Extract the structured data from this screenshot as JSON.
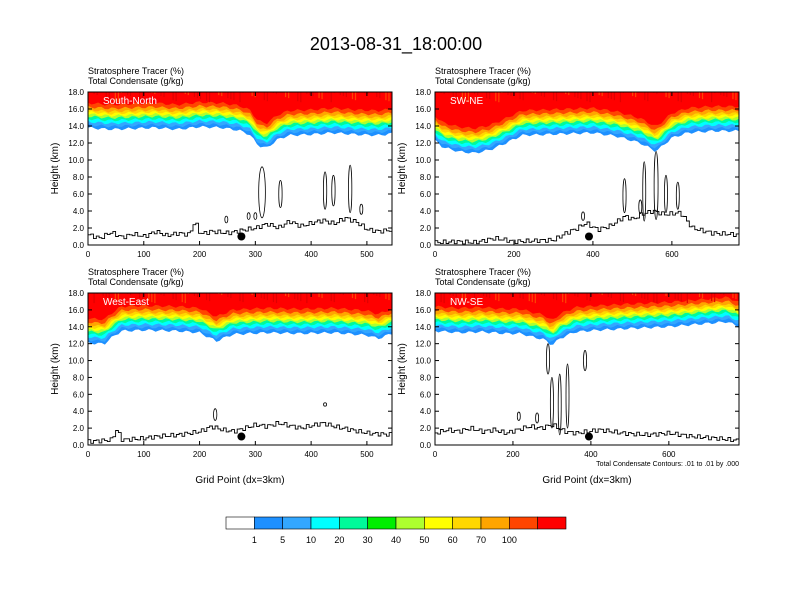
{
  "title": "2013-08-31_18:00:00",
  "colors": {
    "background": "#ffffff",
    "ink": "#000000",
    "panel_label": "#ffffff"
  },
  "chart_data": {
    "type": "filled-contour cross-sections",
    "shared": {
      "field_labels": [
        "Stratosphere Tracer   (%)",
        "Total Condensate   (g/kg)"
      ],
      "ylabel": "Height (km)",
      "xlabel": "Grid Point (dx=3km)",
      "ylim": [
        0,
        18
      ],
      "yticks": [
        "0.0",
        "2.0",
        "4.0",
        "6.0",
        "8.0",
        "10.0",
        "12.0",
        "14.0",
        "16.0",
        "18.0"
      ],
      "contour_note": "Total Condensate Contours: .01 to .01 by .000"
    },
    "colorbar": {
      "labels": [
        "1",
        "5",
        "10",
        "20",
        "30",
        "40",
        "50",
        "60",
        "70",
        "100"
      ],
      "colors": [
        "#ffffff",
        "#1e90ff",
        "#33a7ff",
        "#00ffff",
        "#00fa9a",
        "#00ee00",
        "#adff2f",
        "#ffff00",
        "#ffd700",
        "#ffa500",
        "#ff4500",
        "#ff0000"
      ]
    },
    "panels": [
      {
        "name": "South-North",
        "xlim": [
          0,
          545
        ],
        "xticks": [
          "0",
          "100",
          "200",
          "300",
          "400",
          "500"
        ],
        "xtick_values": [
          0,
          100,
          200,
          300,
          400,
          500
        ],
        "marker_x": 275,
        "marker_height_km": 1.0,
        "tracer_base_km": [
          [
            0,
            13.8
          ],
          [
            40,
            13.6
          ],
          [
            80,
            13.7
          ],
          [
            120,
            13.8
          ],
          [
            160,
            13.6
          ],
          [
            200,
            13.9
          ],
          [
            240,
            13.8
          ],
          [
            270,
            13.5
          ],
          [
            290,
            13.0
          ],
          [
            305,
            11.7
          ],
          [
            320,
            11.4
          ],
          [
            340,
            12.4
          ],
          [
            360,
            12.9
          ],
          [
            400,
            13.0
          ],
          [
            440,
            13.2
          ],
          [
            480,
            13.0
          ],
          [
            520,
            12.9
          ],
          [
            545,
            13.1
          ]
        ],
        "terrain_km": [
          [
            0,
            1.2
          ],
          [
            20,
            0.8
          ],
          [
            40,
            1.5
          ],
          [
            60,
            0.9
          ],
          [
            80,
            1.3
          ],
          [
            100,
            1.0
          ],
          [
            120,
            1.6
          ],
          [
            140,
            1.1
          ],
          [
            160,
            1.4
          ],
          [
            180,
            1.2
          ],
          [
            190,
            2.8
          ],
          [
            200,
            1.3
          ],
          [
            220,
            1.6
          ],
          [
            250,
            1.4
          ],
          [
            280,
            1.8
          ],
          [
            300,
            2.0
          ],
          [
            320,
            2.5
          ],
          [
            340,
            2.0
          ],
          [
            360,
            2.8
          ],
          [
            380,
            2.2
          ],
          [
            400,
            2.6
          ],
          [
            420,
            2.9
          ],
          [
            440,
            2.5
          ],
          [
            460,
            3.2
          ],
          [
            480,
            2.7
          ],
          [
            500,
            1.8
          ],
          [
            520,
            1.6
          ],
          [
            545,
            1.8
          ]
        ],
        "condensate_contours": [
          {
            "x": 312,
            "y_km": 6.2,
            "rx": 6,
            "ry_km": 3.0
          },
          {
            "x": 345,
            "y_km": 6.0,
            "rx": 3,
            "ry_km": 1.6
          },
          {
            "x": 425,
            "y_km": 6.4,
            "rx": 3,
            "ry_km": 2.2
          },
          {
            "x": 440,
            "y_km": 6.4,
            "rx": 3,
            "ry_km": 1.8
          },
          {
            "x": 470,
            "y_km": 6.6,
            "rx": 3,
            "ry_km": 2.8
          },
          {
            "x": 490,
            "y_km": 4.2,
            "rx": 2,
            "ry_km": 0.6
          },
          {
            "x": 248,
            "y_km": 3.0,
            "rx": 2,
            "ry_km": 0.4
          },
          {
            "x": 288,
            "y_km": 3.4,
            "rx": 2,
            "ry_km": 0.4
          },
          {
            "x": 300,
            "y_km": 3.4,
            "rx": 2,
            "ry_km": 0.4
          }
        ]
      },
      {
        "name": "SW-NE",
        "xlim": [
          0,
          770
        ],
        "xticks": [
          "0",
          "200",
          "400",
          "600"
        ],
        "xtick_values": [
          0,
          200,
          400,
          600
        ],
        "marker_x": 390,
        "marker_height_km": 1.0,
        "tracer_base_km": [
          [
            0,
            12.3
          ],
          [
            20,
            11.5
          ],
          [
            60,
            11.0
          ],
          [
            100,
            10.8
          ],
          [
            140,
            11.2
          ],
          [
            180,
            12.0
          ],
          [
            220,
            12.9
          ],
          [
            280,
            13.0
          ],
          [
            340,
            13.1
          ],
          [
            400,
            13.2
          ],
          [
            460,
            12.8
          ],
          [
            520,
            12.0
          ],
          [
            560,
            11.0
          ],
          [
            600,
            12.6
          ],
          [
            640,
            13.2
          ],
          [
            700,
            13.4
          ],
          [
            770,
            13.4
          ]
        ],
        "terrain_km": [
          [
            0,
            0.3
          ],
          [
            50,
            0.4
          ],
          [
            100,
            0.3
          ],
          [
            150,
            0.8
          ],
          [
            200,
            0.4
          ],
          [
            250,
            0.5
          ],
          [
            300,
            0.6
          ],
          [
            330,
            1.4
          ],
          [
            360,
            2.0
          ],
          [
            380,
            2.6
          ],
          [
            410,
            1.8
          ],
          [
            440,
            2.2
          ],
          [
            460,
            2.8
          ],
          [
            480,
            3.4
          ],
          [
            500,
            3.0
          ],
          [
            520,
            3.6
          ],
          [
            550,
            4.0
          ],
          [
            580,
            3.6
          ],
          [
            620,
            3.8
          ],
          [
            650,
            2.0
          ],
          [
            700,
            1.4
          ],
          [
            770,
            1.2
          ]
        ],
        "condensate_contours": [
          {
            "x": 480,
            "y_km": 5.8,
            "rx": 4,
            "ry_km": 2.0
          },
          {
            "x": 530,
            "y_km": 6.3,
            "rx": 3,
            "ry_km": 3.5
          },
          {
            "x": 560,
            "y_km": 7.0,
            "rx": 5,
            "ry_km": 4.0
          },
          {
            "x": 585,
            "y_km": 6.0,
            "rx": 3,
            "ry_km": 2.2
          },
          {
            "x": 615,
            "y_km": 5.8,
            "rx": 3,
            "ry_km": 1.6
          },
          {
            "x": 375,
            "y_km": 3.4,
            "rx": 2,
            "ry_km": 0.5
          },
          {
            "x": 520,
            "y_km": 4.5,
            "rx": 3,
            "ry_km": 0.8
          }
        ]
      },
      {
        "name": "West-East",
        "xlim": [
          0,
          545
        ],
        "xticks": [
          "0",
          "100",
          "200",
          "300",
          "400",
          "500"
        ],
        "xtick_values": [
          0,
          100,
          200,
          300,
          400,
          500
        ],
        "marker_x": 275,
        "marker_height_km": 1.0,
        "tracer_base_km": [
          [
            0,
            12.1
          ],
          [
            15,
            12.0
          ],
          [
            30,
            12.0
          ],
          [
            40,
            12.6
          ],
          [
            60,
            13.5
          ],
          [
            100,
            13.6
          ],
          [
            160,
            13.5
          ],
          [
            200,
            13.3
          ],
          [
            230,
            12.3
          ],
          [
            260,
            13.1
          ],
          [
            320,
            13.3
          ],
          [
            380,
            13.2
          ],
          [
            440,
            13.3
          ],
          [
            500,
            13.0
          ],
          [
            520,
            12.6
          ],
          [
            545,
            13.2
          ]
        ],
        "terrain_km": [
          [
            0,
            0.4
          ],
          [
            40,
            0.6
          ],
          [
            50,
            1.8
          ],
          [
            60,
            0.6
          ],
          [
            100,
            0.8
          ],
          [
            120,
            1.0
          ],
          [
            160,
            1.2
          ],
          [
            200,
            1.6
          ],
          [
            220,
            2.2
          ],
          [
            240,
            1.8
          ],
          [
            260,
            1.6
          ],
          [
            280,
            2.0
          ],
          [
            300,
            2.4
          ],
          [
            320,
            2.2
          ],
          [
            340,
            2.6
          ],
          [
            380,
            2.0
          ],
          [
            420,
            2.6
          ],
          [
            440,
            2.2
          ],
          [
            470,
            1.8
          ],
          [
            500,
            1.4
          ],
          [
            545,
            1.2
          ]
        ],
        "condensate_contours": [
          {
            "x": 228,
            "y_km": 3.6,
            "rx": 3,
            "ry_km": 0.7
          },
          {
            "x": 425,
            "y_km": 4.8,
            "rx": 1,
            "ry_km": 0.2
          }
        ]
      },
      {
        "name": "NW-SE",
        "xlim": [
          0,
          780
        ],
        "xticks": [
          "0",
          "200",
          "400",
          "600"
        ],
        "xtick_values": [
          0,
          200,
          400,
          600
        ],
        "marker_x": 395,
        "marker_height_km": 1.0,
        "tracer_base_km": [
          [
            0,
            13.5
          ],
          [
            60,
            13.3
          ],
          [
            120,
            13.4
          ],
          [
            180,
            13.2
          ],
          [
            220,
            13.2
          ],
          [
            250,
            12.8
          ],
          [
            280,
            12.5
          ],
          [
            300,
            11.8
          ],
          [
            320,
            12.6
          ],
          [
            360,
            13.4
          ],
          [
            420,
            13.6
          ],
          [
            500,
            13.8
          ],
          [
            600,
            14.0
          ],
          [
            700,
            14.4
          ],
          [
            750,
            14.6
          ],
          [
            780,
            14.0
          ]
        ],
        "terrain_km": [
          [
            0,
            1.4
          ],
          [
            30,
            1.8
          ],
          [
            60,
            1.6
          ],
          [
            90,
            2.0
          ],
          [
            120,
            1.6
          ],
          [
            150,
            1.8
          ],
          [
            180,
            1.4
          ],
          [
            210,
            1.8
          ],
          [
            240,
            2.2
          ],
          [
            270,
            2.0
          ],
          [
            300,
            2.4
          ],
          [
            330,
            1.6
          ],
          [
            360,
            1.4
          ],
          [
            420,
            1.8
          ],
          [
            480,
            1.4
          ],
          [
            540,
            1.2
          ],
          [
            600,
            1.4
          ],
          [
            660,
            1.0
          ],
          [
            720,
            0.8
          ],
          [
            780,
            0.5
          ]
        ],
        "condensate_contours": [
          {
            "x": 385,
            "y_km": 10.0,
            "rx": 4,
            "ry_km": 1.2
          },
          {
            "x": 290,
            "y_km": 10.2,
            "rx": 4,
            "ry_km": 1.8
          },
          {
            "x": 300,
            "y_km": 5.0,
            "rx": 4,
            "ry_km": 3.0
          },
          {
            "x": 320,
            "y_km": 4.8,
            "rx": 3,
            "ry_km": 3.6
          },
          {
            "x": 340,
            "y_km": 5.8,
            "rx": 3,
            "ry_km": 3.8
          },
          {
            "x": 262,
            "y_km": 3.2,
            "rx": 2,
            "ry_km": 0.6
          },
          {
            "x": 215,
            "y_km": 3.4,
            "rx": 2,
            "ry_km": 0.5
          }
        ]
      }
    ]
  }
}
